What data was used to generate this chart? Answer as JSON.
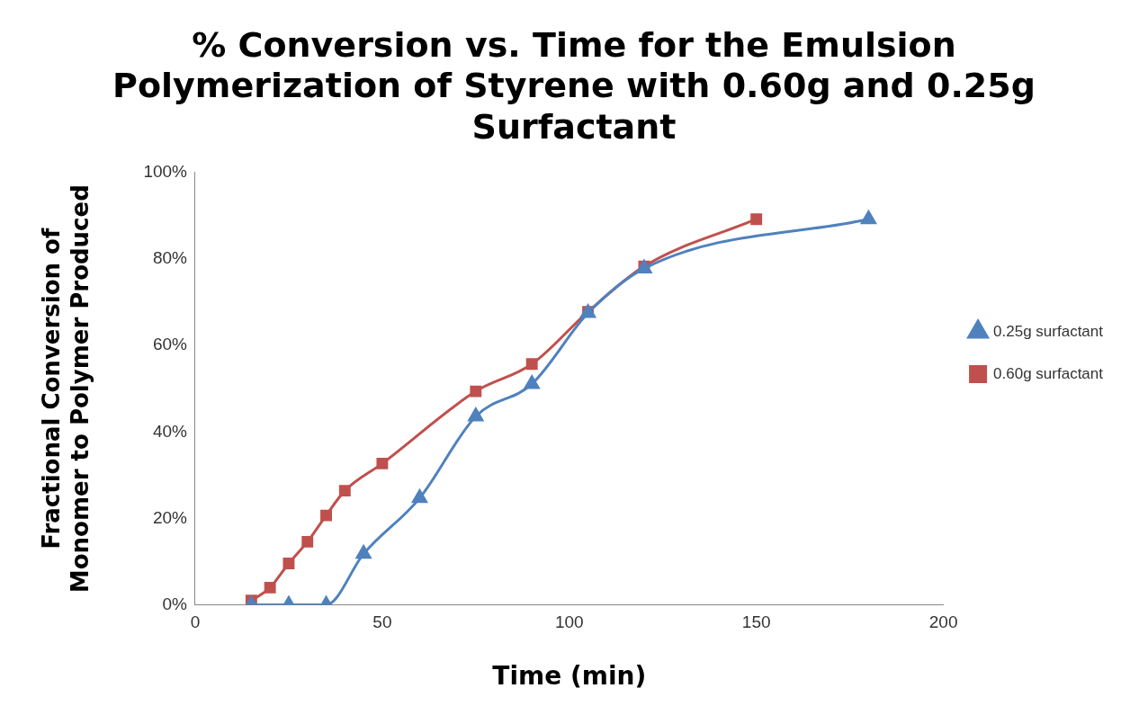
{
  "chart_data": {
    "type": "line",
    "title": "% Conversion vs. Time for the Emulsion Polymerization of Styrene with 0.60g and 0.25g Surfactant",
    "xlabel": "Time (min)",
    "ylabel": "Fractional Conversion of Monomer to Polymer Produced",
    "xlim": [
      0,
      200
    ],
    "xticks": [
      0,
      50,
      100,
      150,
      200
    ],
    "ylim": [
      0,
      100
    ],
    "yticks": [
      {
        "value": 0,
        "label": "0%"
      },
      {
        "value": 20,
        "label": "20%"
      },
      {
        "value": 40,
        "label": "40%"
      },
      {
        "value": 60,
        "label": "60%"
      },
      {
        "value": 80,
        "label": "80%"
      },
      {
        "value": 100,
        "label": "100%"
      }
    ],
    "grid": false,
    "legend": "right",
    "series": [
      {
        "name": "0.60g surfactant",
        "color": "#c0504d",
        "marker": "square",
        "x": [
          15,
          20,
          25,
          30,
          35,
          40,
          50,
          75,
          90,
          105,
          120,
          150
        ],
        "values": [
          1,
          4,
          9.6,
          14.6,
          20.7,
          26.4,
          32.7,
          49.4,
          55.7,
          67.8,
          78.3,
          89.2
        ]
      },
      {
        "name": "0.25g surfactant",
        "color": "#4f81bd",
        "marker": "triangle",
        "x": [
          15,
          25,
          35,
          45,
          60,
          75,
          90,
          105,
          120,
          180
        ],
        "values": [
          0,
          0,
          0,
          11.8,
          24.7,
          43.6,
          51.1,
          67.5,
          77.8,
          89.2
        ]
      }
    ]
  }
}
